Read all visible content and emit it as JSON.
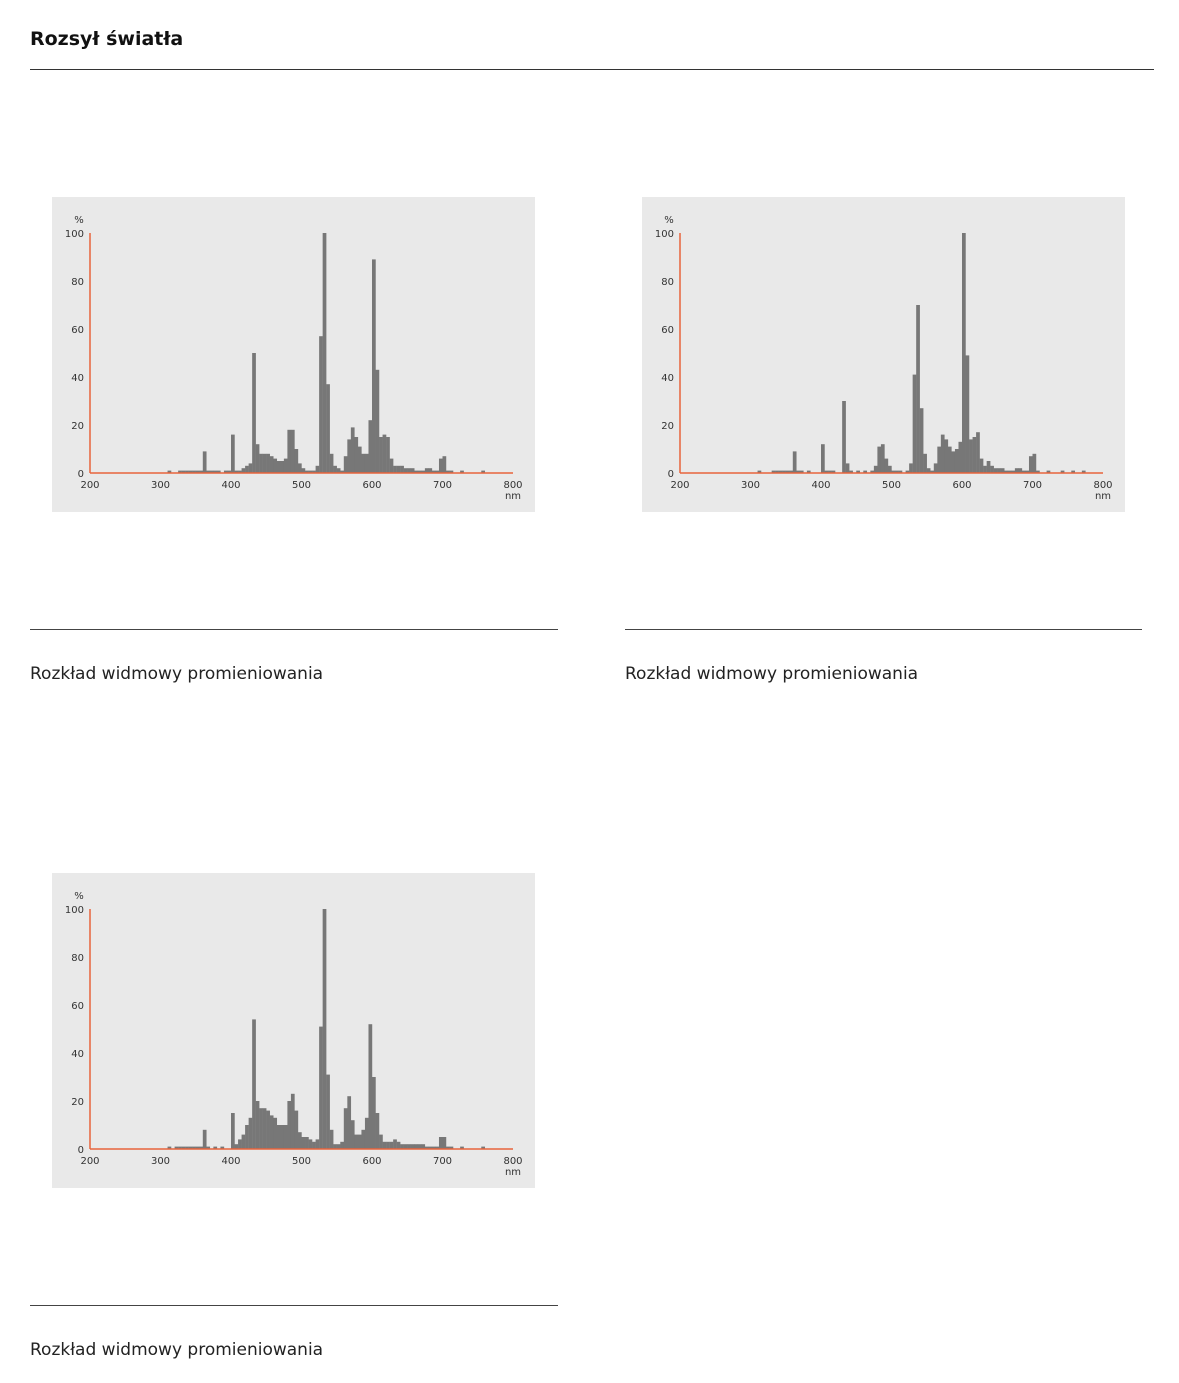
{
  "page": {
    "title": "Rozsył światła"
  },
  "colors": {
    "bar": "#777777",
    "axis": "#e8643c",
    "panel": "#e9e9e9",
    "text": "#333333"
  },
  "chart_data": [
    {
      "type": "bar",
      "caption": "Rozkład widmowy promieniowania",
      "ylabel": "%",
      "xlabel": "nm",
      "xlim": [
        200,
        800
      ],
      "ylim": [
        0,
        100
      ],
      "x_ticks": [
        200,
        300,
        400,
        500,
        600,
        700,
        800
      ],
      "y_ticks": [
        0,
        20,
        40,
        60,
        80,
        100
      ],
      "bin_width": 5,
      "x": [
        310,
        325,
        330,
        335,
        340,
        345,
        350,
        355,
        360,
        365,
        370,
        375,
        380,
        390,
        395,
        400,
        405,
        410,
        415,
        420,
        425,
        430,
        435,
        440,
        445,
        450,
        455,
        460,
        465,
        470,
        475,
        480,
        485,
        490,
        495,
        500,
        505,
        510,
        515,
        520,
        525,
        530,
        535,
        540,
        545,
        550,
        555,
        560,
        565,
        570,
        575,
        580,
        585,
        590,
        595,
        600,
        605,
        610,
        615,
        620,
        625,
        630,
        635,
        640,
        645,
        650,
        655,
        660,
        665,
        670,
        675,
        680,
        685,
        690,
        695,
        700,
        705,
        710,
        725,
        755
      ],
      "values": [
        1,
        1,
        1,
        1,
        1,
        1,
        1,
        1,
        9,
        1,
        1,
        1,
        1,
        1,
        1,
        16,
        1,
        1,
        2,
        3,
        4,
        50,
        12,
        8,
        8,
        8,
        7,
        6,
        5,
        5,
        6,
        18,
        18,
        10,
        4,
        2,
        1,
        1,
        1,
        3,
        57,
        100,
        37,
        8,
        3,
        2,
        1,
        7,
        14,
        19,
        15,
        11,
        8,
        8,
        22,
        89,
        43,
        15,
        16,
        15,
        6,
        3,
        3,
        3,
        2,
        2,
        2,
        1,
        1,
        1,
        2,
        2,
        1,
        1,
        6,
        7,
        1,
        1,
        1,
        1
      ]
    },
    {
      "type": "bar",
      "caption": "Rozkład widmowy promieniowania",
      "ylabel": "%",
      "xlabel": "nm",
      "xlim": [
        200,
        800
      ],
      "ylim": [
        0,
        100
      ],
      "x_ticks": [
        200,
        300,
        400,
        500,
        600,
        700,
        800
      ],
      "y_ticks": [
        0,
        20,
        40,
        60,
        80,
        100
      ],
      "bin_width": 5,
      "x": [
        310,
        330,
        335,
        340,
        345,
        350,
        355,
        360,
        365,
        370,
        380,
        400,
        405,
        410,
        415,
        430,
        435,
        440,
        450,
        460,
        470,
        475,
        480,
        485,
        490,
        495,
        500,
        505,
        510,
        520,
        525,
        530,
        535,
        540,
        545,
        550,
        555,
        560,
        565,
        570,
        575,
        580,
        585,
        590,
        595,
        600,
        605,
        610,
        615,
        620,
        625,
        630,
        635,
        640,
        645,
        650,
        655,
        660,
        665,
        670,
        675,
        680,
        685,
        690,
        695,
        700,
        705,
        720,
        740,
        755,
        770
      ],
      "values": [
        1,
        1,
        1,
        1,
        1,
        1,
        1,
        9,
        1,
        1,
        1,
        12,
        1,
        1,
        1,
        30,
        4,
        1,
        1,
        1,
        1,
        3,
        11,
        12,
        6,
        3,
        1,
        1,
        1,
        1,
        4,
        41,
        70,
        27,
        8,
        2,
        1,
        4,
        11,
        16,
        14,
        11,
        9,
        10,
        13,
        100,
        49,
        14,
        15,
        17,
        6,
        3,
        5,
        3,
        2,
        2,
        2,
        1,
        1,
        1,
        2,
        2,
        1,
        1,
        7,
        8,
        1,
        1,
        1,
        1,
        1
      ]
    },
    {
      "type": "bar",
      "caption": "Rozkład widmowy promieniowania",
      "ylabel": "%",
      "xlabel": "nm",
      "xlim": [
        200,
        800
      ],
      "ylim": [
        0,
        100
      ],
      "x_ticks": [
        200,
        300,
        400,
        500,
        600,
        700,
        800
      ],
      "y_ticks": [
        0,
        20,
        40,
        60,
        80,
        100
      ],
      "bin_width": 5,
      "x": [
        310,
        320,
        325,
        330,
        335,
        340,
        345,
        350,
        355,
        360,
        365,
        375,
        385,
        400,
        405,
        410,
        415,
        420,
        425,
        430,
        435,
        440,
        445,
        450,
        455,
        460,
        465,
        470,
        475,
        480,
        485,
        490,
        495,
        500,
        505,
        510,
        515,
        520,
        525,
        530,
        535,
        540,
        545,
        550,
        555,
        560,
        565,
        570,
        575,
        580,
        585,
        590,
        595,
        600,
        605,
        610,
        615,
        620,
        625,
        630,
        635,
        640,
        645,
        650,
        655,
        660,
        665,
        670,
        675,
        680,
        685,
        690,
        695,
        700,
        705,
        710,
        725,
        755
      ],
      "values": [
        1,
        1,
        1,
        1,
        1,
        1,
        1,
        1,
        1,
        8,
        1,
        1,
        1,
        15,
        2,
        4,
        6,
        10,
        13,
        54,
        20,
        17,
        17,
        16,
        14,
        13,
        10,
        10,
        10,
        20,
        23,
        16,
        7,
        5,
        5,
        4,
        3,
        4,
        51,
        100,
        31,
        8,
        2,
        2,
        3,
        17,
        22,
        12,
        6,
        6,
        8,
        13,
        52,
        30,
        15,
        6,
        3,
        3,
        3,
        4,
        3,
        2,
        2,
        2,
        2,
        2,
        2,
        2,
        1,
        1,
        1,
        1,
        5,
        5,
        1,
        1,
        1,
        1
      ]
    }
  ]
}
